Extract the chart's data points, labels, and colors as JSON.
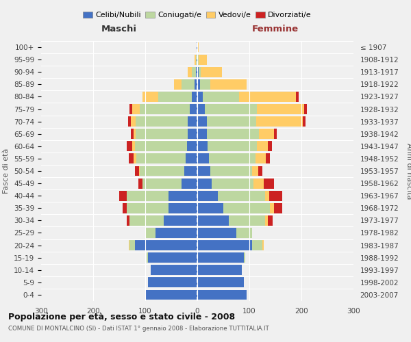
{
  "age_groups": [
    "0-4",
    "5-9",
    "10-14",
    "15-19",
    "20-24",
    "25-29",
    "30-34",
    "35-39",
    "40-44",
    "45-49",
    "50-54",
    "55-59",
    "60-64",
    "65-69",
    "70-74",
    "75-79",
    "80-84",
    "85-89",
    "90-94",
    "95-99",
    "100+"
  ],
  "birth_years": [
    "2003-2007",
    "1998-2002",
    "1993-1997",
    "1988-1992",
    "1983-1987",
    "1978-1982",
    "1973-1977",
    "1968-1972",
    "1963-1967",
    "1958-1962",
    "1953-1957",
    "1948-1952",
    "1943-1947",
    "1938-1942",
    "1933-1937",
    "1928-1932",
    "1923-1927",
    "1918-1922",
    "1913-1917",
    "1908-1912",
    "≤ 1907"
  ],
  "maschi": {
    "celibi": [
      100,
      95,
      90,
      95,
      120,
      80,
      65,
      55,
      55,
      30,
      25,
      22,
      20,
      18,
      18,
      15,
      10,
      5,
      2,
      1,
      1
    ],
    "coniugati": [
      0,
      0,
      0,
      2,
      10,
      20,
      65,
      80,
      80,
      75,
      85,
      95,
      100,
      100,
      100,
      95,
      65,
      25,
      8,
      2,
      0
    ],
    "vedovi": [
      0,
      0,
      0,
      0,
      2,
      0,
      0,
      0,
      0,
      0,
      2,
      5,
      5,
      5,
      10,
      15,
      30,
      15,
      8,
      2,
      0
    ],
    "divorziati": [
      0,
      0,
      0,
      0,
      0,
      0,
      5,
      8,
      15,
      8,
      8,
      10,
      10,
      5,
      5,
      5,
      0,
      0,
      0,
      0,
      0
    ]
  },
  "femmine": {
    "nubili": [
      95,
      90,
      85,
      90,
      105,
      75,
      60,
      50,
      40,
      28,
      25,
      22,
      20,
      18,
      18,
      15,
      10,
      5,
      2,
      1,
      1
    ],
    "coniugate": [
      0,
      0,
      0,
      2,
      20,
      30,
      70,
      90,
      90,
      80,
      80,
      90,
      95,
      100,
      95,
      100,
      70,
      20,
      5,
      2,
      0
    ],
    "vedove": [
      0,
      0,
      0,
      0,
      2,
      0,
      5,
      8,
      8,
      20,
      12,
      20,
      20,
      30,
      90,
      90,
      110,
      70,
      40,
      15,
      2
    ],
    "divorziate": [
      0,
      0,
      0,
      0,
      0,
      0,
      10,
      15,
      25,
      20,
      8,
      8,
      8,
      5,
      5,
      5,
      5,
      0,
      0,
      0,
      0
    ]
  },
  "colors": {
    "celibi": "#4472C4",
    "coniugati": "#BDD7A0",
    "vedovi": "#FFCC66",
    "divorziati": "#CC2222"
  },
  "xlim": 300,
  "title": "Popolazione per età, sesso e stato civile - 2008",
  "subtitle": "COMUNE DI MONTALCINO (SI) - Dati ISTAT 1° gennaio 2008 - Elaborazione TUTTITALIA.IT",
  "ylabel_left": "Fasce di età",
  "ylabel_right": "Anni di nascita",
  "header_maschi": "Maschi",
  "header_femmine": "Femmine",
  "legend_labels": [
    "Celibi/Nubili",
    "Coniugati/e",
    "Vedovi/e",
    "Divorziati/e"
  ],
  "bg_color": "#f0f0f0",
  "bar_bg_color": "#e8e8e8"
}
